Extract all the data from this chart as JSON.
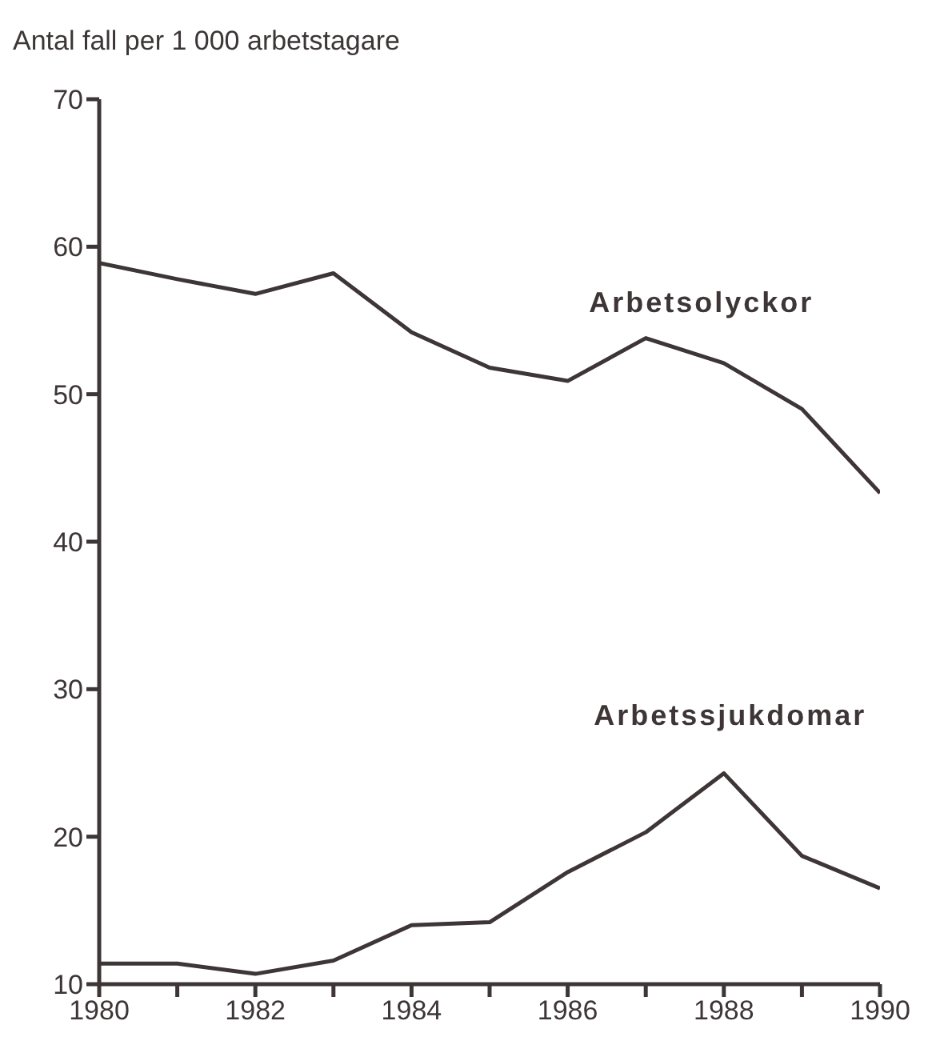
{
  "chart_data": {
    "type": "line",
    "ylabel": "Antal fall per 1 000 arbetstagare",
    "x": [
      1980,
      1981,
      1982,
      1983,
      1984,
      1985,
      1986,
      1987,
      1988,
      1989,
      1990
    ],
    "series": [
      {
        "name": "Arbetsolyckor",
        "color": "#3d3536",
        "values": [
          58.9,
          57.8,
          56.8,
          58.2,
          54.2,
          51.8,
          50.9,
          53.8,
          52.1,
          49.0,
          43.3
        ]
      },
      {
        "name": "Arbetssjukdomar",
        "color": "#3d3536",
        "values": [
          11.4,
          11.4,
          10.7,
          11.6,
          14.0,
          14.2,
          17.6,
          20.3,
          24.3,
          18.7,
          16.5
        ]
      }
    ],
    "xlim": [
      1980,
      1990
    ],
    "xticks": [
      1980,
      {
        "value": 1981,
        "label": null
      },
      1982,
      {
        "value": 1983,
        "label": null
      },
      1984,
      {
        "value": 1985,
        "label": null
      },
      1986,
      {
        "value": 1987,
        "label": null
      },
      1988,
      {
        "value": 1989,
        "label": null
      },
      1990
    ],
    "ylim": [
      10,
      70
    ],
    "yticks": [
      10,
      20,
      30,
      40,
      50,
      60,
      70
    ],
    "grid": false,
    "legend": false,
    "marker": "none",
    "line_style": "solid"
  }
}
